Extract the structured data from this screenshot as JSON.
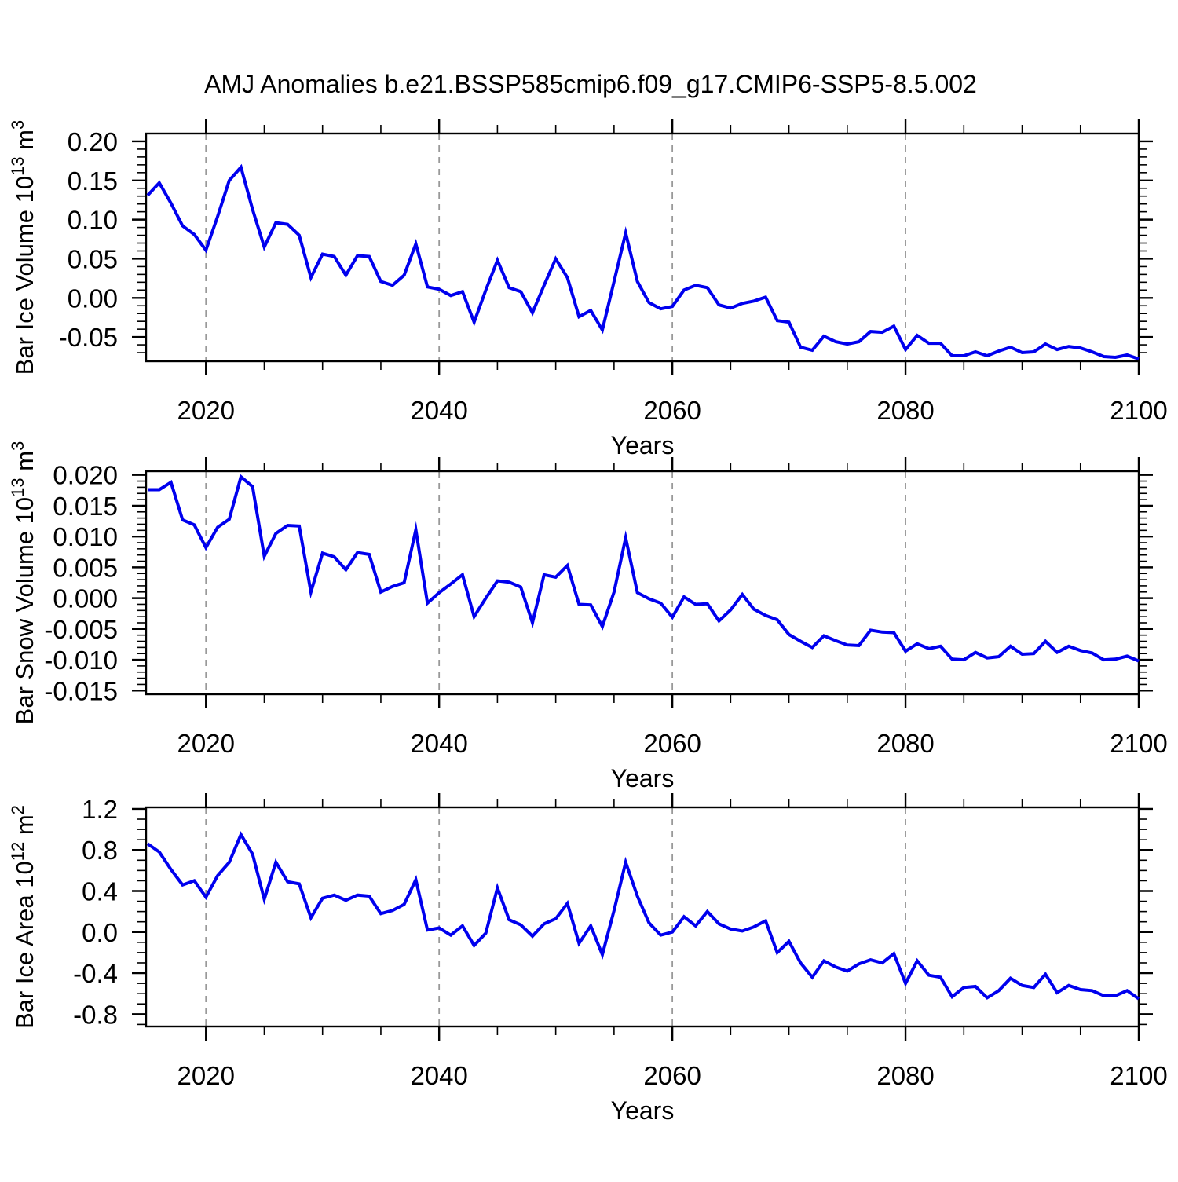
{
  "title": "AMJ Anomalies b.e21.BSSP585cmip6.f09_g17.CMIP6-SSP5-8.5.002",
  "xlabel": "Years",
  "colors": {
    "line": "#0000ee",
    "grid": "#999999",
    "axis": "#000000",
    "background": "#ffffff"
  },
  "x": {
    "start": 2015,
    "end": 2100,
    "tick_labels": [
      "2020",
      "2040",
      "2060",
      "2080",
      "2100"
    ],
    "major_ticks": [
      2020,
      2040,
      2060,
      2080,
      2100
    ],
    "minor_step": 5,
    "grid_years": [
      2020,
      2040,
      2060,
      2080
    ]
  },
  "chart_data": [
    {
      "type": "line",
      "name": "bar-ice-volume",
      "ylabel_text": "Bar Ice Volume 10^13 m^3",
      "ylabel_parts": [
        {
          "t": "Bar Ice Volume 10"
        },
        {
          "sup": "13"
        },
        {
          "t": " m"
        },
        {
          "sup": "3"
        }
      ],
      "y_tick_labels": [
        "0.20",
        "0.15",
        "0.10",
        "0.05",
        "0.00",
        "-0.05"
      ],
      "y_ticks": [
        0.2,
        0.15,
        0.1,
        0.05,
        0.0,
        -0.05
      ],
      "y_minor_step": 0.01,
      "ylim": [
        -0.081,
        0.21
      ],
      "x_start": 2015,
      "values": [
        0.131,
        0.147,
        0.121,
        0.092,
        0.081,
        0.061,
        0.104,
        0.15,
        0.167,
        0.113,
        0.065,
        0.096,
        0.094,
        0.08,
        0.026,
        0.056,
        0.053,
        0.029,
        0.054,
        0.053,
        0.021,
        0.016,
        0.029,
        0.069,
        0.014,
        0.011,
        0.003,
        0.008,
        -0.031,
        0.01,
        0.048,
        0.013,
        0.008,
        -0.019,
        0.016,
        0.05,
        0.026,
        -0.024,
        -0.016,
        -0.041,
        0.021,
        0.083,
        0.021,
        -0.006,
        -0.014,
        -0.011,
        0.01,
        0.016,
        0.013,
        -0.009,
        -0.013,
        -0.007,
        -0.004,
        0.001,
        -0.029,
        -0.031,
        -0.063,
        -0.067,
        -0.049,
        -0.056,
        -0.059,
        -0.056,
        -0.043,
        -0.044,
        -0.036,
        -0.066,
        -0.048,
        -0.058,
        -0.058,
        -0.074,
        -0.074,
        -0.069,
        -0.074,
        -0.068,
        -0.063,
        -0.07,
        -0.069,
        -0.059,
        -0.066,
        -0.062,
        -0.064,
        -0.069,
        -0.075,
        -0.076,
        -0.073,
        -0.078
      ]
    },
    {
      "type": "line",
      "name": "bar-snow-volume",
      "ylabel_text": "Bar Snow Volume 10^13 m^3",
      "ylabel_parts": [
        {
          "t": "Bar Snow Volume 10"
        },
        {
          "sup": "13"
        },
        {
          "t": " m"
        },
        {
          "sup": "3"
        }
      ],
      "y_tick_labels": [
        "0.020",
        "0.015",
        "0.010",
        "0.005",
        "0.000",
        "-0.005",
        "-0.010",
        "-0.015"
      ],
      "y_ticks": [
        0.02,
        0.015,
        0.01,
        0.005,
        0.0,
        -0.005,
        -0.01,
        -0.015
      ],
      "y_minor_step": 0.001,
      "ylim": [
        -0.0156,
        0.0206
      ],
      "x_start": 2015,
      "values": [
        0.0176,
        0.0176,
        0.0188,
        0.0127,
        0.0119,
        0.0082,
        0.0115,
        0.0128,
        0.0197,
        0.0181,
        0.0068,
        0.0105,
        0.0118,
        0.0117,
        0.001,
        0.0073,
        0.0067,
        0.0046,
        0.0074,
        0.0071,
        0.001,
        0.0019,
        0.0025,
        0.0111,
        -0.0008,
        0.0009,
        0.0023,
        0.0038,
        -0.003,
        0.0,
        0.0028,
        0.0026,
        0.0018,
        -0.004,
        0.0038,
        0.0034,
        0.0053,
        -0.001,
        -0.0011,
        -0.0046,
        0.001,
        0.0098,
        0.0009,
        -0.0001,
        -0.0008,
        -0.0031,
        0.0002,
        -0.001,
        -0.0009,
        -0.0037,
        -0.0019,
        0.0006,
        -0.0018,
        -0.0028,
        -0.0035,
        -0.0059,
        -0.007,
        -0.008,
        -0.0061,
        -0.0069,
        -0.0076,
        -0.0077,
        -0.0052,
        -0.0055,
        -0.0056,
        -0.0086,
        -0.0074,
        -0.0082,
        -0.0078,
        -0.0099,
        -0.01,
        -0.0088,
        -0.0097,
        -0.0095,
        -0.0078,
        -0.0091,
        -0.009,
        -0.007,
        -0.0088,
        -0.0078,
        -0.0085,
        -0.0089,
        -0.01,
        -0.0099,
        -0.0094,
        -0.0102
      ]
    },
    {
      "type": "line",
      "name": "bar-ice-area",
      "ylabel_text": "Bar Ice Area 10^12 m^2",
      "ylabel_parts": [
        {
          "t": "Bar Ice Area 10"
        },
        {
          "sup": "12"
        },
        {
          "t": " m"
        },
        {
          "sup": "2"
        }
      ],
      "y_tick_labels": [
        "1.2",
        "0.8",
        "0.4",
        "0.0",
        "-0.4",
        "-0.8"
      ],
      "y_ticks": [
        1.2,
        0.8,
        0.4,
        0.0,
        -0.4,
        -0.8
      ],
      "y_minor_step": 0.1,
      "ylim": [
        -0.92,
        1.215
      ],
      "x_start": 2015,
      "values": [
        0.86,
        0.78,
        0.61,
        0.46,
        0.5,
        0.34,
        0.55,
        0.68,
        0.95,
        0.76,
        0.32,
        0.68,
        0.49,
        0.47,
        0.14,
        0.33,
        0.36,
        0.31,
        0.36,
        0.35,
        0.18,
        0.21,
        0.27,
        0.51,
        0.02,
        0.04,
        -0.03,
        0.06,
        -0.13,
        -0.01,
        0.43,
        0.12,
        0.07,
        -0.04,
        0.08,
        0.13,
        0.28,
        -0.11,
        0.06,
        -0.22,
        0.21,
        0.68,
        0.35,
        0.09,
        -0.03,
        0.0,
        0.15,
        0.06,
        0.2,
        0.08,
        0.03,
        0.01,
        0.05,
        0.11,
        -0.2,
        -0.09,
        -0.3,
        -0.44,
        -0.28,
        -0.34,
        -0.38,
        -0.31,
        -0.27,
        -0.3,
        -0.21,
        -0.5,
        -0.28,
        -0.42,
        -0.44,
        -0.63,
        -0.54,
        -0.53,
        -0.64,
        -0.57,
        -0.45,
        -0.52,
        -0.54,
        -0.41,
        -0.59,
        -0.52,
        -0.56,
        -0.57,
        -0.62,
        -0.62,
        -0.57,
        -0.65
      ]
    }
  ]
}
